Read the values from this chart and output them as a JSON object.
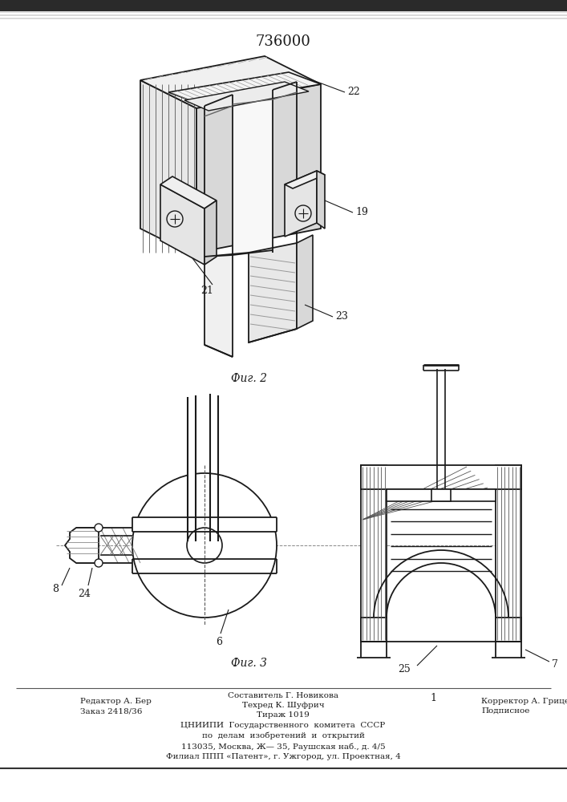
{
  "patent_number": "736000",
  "fig2_caption": "Фиг. 2",
  "fig3_caption": "Фиг. 3",
  "footer_lines": [
    [
      "Редактор А. Бер",
      "Составитель Г. Новикова",
      "Корректор А. Гриценко"
    ],
    [
      "Заказ 2418/36",
      "Техред К. Шуфрич",
      "Подписное"
    ],
    [
      "",
      "Тираж 1019",
      ""
    ]
  ],
  "footer_center": [
    "ЦНИИПИ  Государственного  комитета  СССР",
    "по  делам  изобретений  и  открытий",
    "113035, Москва, Ж— 35, Раушская наб., д. 4/5",
    "Филиал ППП «Патент», г. Ужгород, ул. Проектная, 4"
  ],
  "bg_color": "#ffffff",
  "line_color": "#1a1a1a",
  "hatch_color": "#555555",
  "scan_top_color": "#333333"
}
